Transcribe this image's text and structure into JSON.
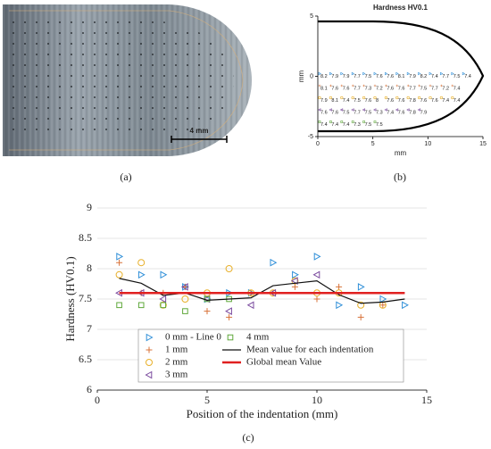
{
  "scale_bar": "4 mm",
  "captions": [
    "(a)",
    "(b)",
    "(c)"
  ],
  "chart_data": [
    {
      "type": "outline",
      "title": "Hardness HV0.1",
      "x_label": "mm",
      "y_label": "mm",
      "xlim": [
        0,
        15
      ],
      "xticks": [
        0,
        5,
        10,
        15
      ],
      "ylim": [
        -5,
        5
      ],
      "yticks": [
        -5,
        0,
        5
      ]
    },
    {
      "type": "scatter",
      "x_label": "Position of the indentation (mm)",
      "y_label": "Hardness (HV0.1)",
      "xlim": [
        0,
        15
      ],
      "xticks": [
        0,
        5,
        10,
        15
      ],
      "ylim": [
        6,
        9
      ],
      "yticks": [
        6,
        6.5,
        7,
        7.5,
        8,
        8.5,
        9
      ],
      "grid": true,
      "legend": "lower center",
      "x": [
        1,
        2,
        3,
        4,
        5,
        6,
        7,
        8,
        9,
        10,
        11,
        12,
        13,
        14
      ],
      "series": [
        {
          "name": "0 mm - Line 0",
          "color": "#2f8fd8",
          "marker": "triangle-right",
          "values": [
            8.2,
            7.9,
            7.9,
            7.7,
            7.5,
            7.6,
            7.6,
            8.1,
            7.9,
            8.2,
            7.4,
            7.7,
            7.5,
            7.4
          ]
        },
        {
          "name": "1 mm",
          "color": "#d8733a",
          "marker": "plus",
          "values": [
            8.1,
            7.6,
            7.6,
            7.7,
            7.3,
            7.2,
            7.6,
            7.6,
            7.7,
            7.5,
            7.7,
            7.2,
            7.4,
            null
          ]
        },
        {
          "name": "2 mm",
          "color": "#e8b02a",
          "marker": "circle",
          "values": [
            7.9,
            8.1,
            7.4,
            7.5,
            7.6,
            8.0,
            7.6,
            7.6,
            7.8,
            7.6,
            7.6,
            7.4,
            7.4,
            null
          ]
        },
        {
          "name": "3 mm",
          "color": "#7a4a9e",
          "marker": "triangle-left",
          "values": [
            7.6,
            7.6,
            7.5,
            7.7,
            7.5,
            7.3,
            7.4,
            7.6,
            7.8,
            7.9,
            null,
            null,
            null,
            null
          ]
        },
        {
          "name": "4 mm",
          "color": "#5fa83a",
          "marker": "square",
          "values": [
            7.4,
            7.4,
            7.4,
            7.3,
            7.5,
            7.5,
            null,
            null,
            null,
            null,
            null,
            null,
            null,
            null
          ]
        },
        {
          "name": "Mean value for each indentation",
          "color": "#111111",
          "marker": "line",
          "values": [
            7.84,
            7.76,
            7.56,
            7.6,
            7.48,
            7.5,
            7.52,
            7.72,
            7.76,
            7.8,
            7.57,
            7.43,
            7.45,
            7.5
          ]
        },
        {
          "name": "Global mean Value",
          "color": "#e02020",
          "marker": "thick-line",
          "values": [
            7.6,
            7.6,
            7.6,
            7.6,
            7.6,
            7.6,
            7.6,
            7.6,
            7.6,
            7.6,
            7.6,
            7.6,
            7.6,
            7.6
          ]
        }
      ]
    }
  ]
}
